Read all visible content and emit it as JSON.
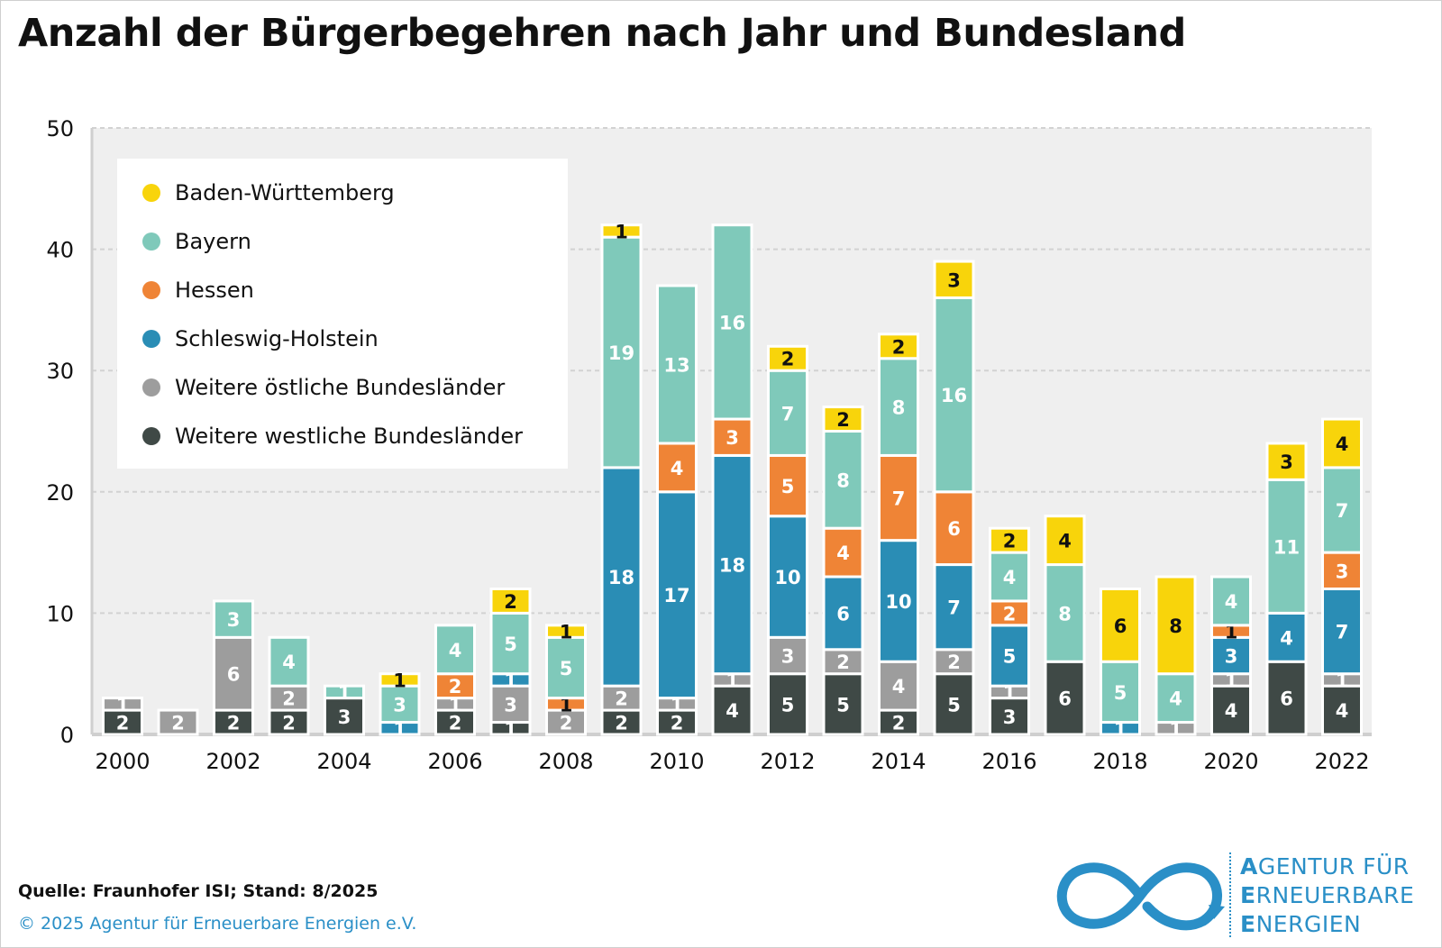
{
  "title": "Anzahl der Bürgerbegehren nach Jahr und Bundesland",
  "footer": {
    "source": "Quelle: Fraunhofer ISI; Stand: 8/2025",
    "copyright": "© 2025 Agentur für Erneuerbare Energien e.V."
  },
  "logo": {
    "lines": [
      {
        "first": "A",
        "rest": "GENTUR FÜR"
      },
      {
        "first": "E",
        "rest": "RNEUERBARE"
      },
      {
        "first": "E",
        "rest": "NERGIEN"
      }
    ]
  },
  "colors": {
    "bw": "#f8d40b",
    "by": "#7fc9ba",
    "he": "#ef8436",
    "sh": "#2a8db5",
    "ost": "#9d9d9d",
    "west": "#3f4946",
    "plot_bg": "#efefef",
    "logo": "#2a8fc7"
  },
  "chart_data": {
    "type": "bar",
    "stacked": true,
    "title": "Anzahl der Bürgerbegehren nach Jahr und Bundesland",
    "xlabel": "",
    "ylabel": "",
    "ylim": [
      0,
      50
    ],
    "yticks": [
      "0",
      "10",
      "20",
      "30",
      "40",
      "50"
    ],
    "xtick_labels": [
      "2000",
      "2002",
      "2004",
      "2006",
      "2008",
      "2010",
      "2012",
      "2014",
      "2016",
      "2018",
      "2020",
      "2022"
    ],
    "grid": true,
    "legend_position": "top-left",
    "categories": [
      "2000",
      "2001",
      "2002",
      "2003",
      "2004",
      "2005",
      "2006",
      "2007",
      "2008",
      "2009",
      "2010",
      "2011",
      "2012",
      "2013",
      "2014",
      "2015",
      "2016",
      "2017",
      "2018",
      "2019",
      "2020",
      "2021",
      "2022"
    ],
    "series": [
      {
        "name": "Weitere westliche Bundesländer",
        "key": "west",
        "values": [
          2,
          0,
          2,
          2,
          3,
          0,
          2,
          1,
          0,
          2,
          2,
          4,
          5,
          5,
          2,
          5,
          3,
          6,
          0,
          0,
          4,
          6,
          4
        ]
      },
      {
        "name": "Weitere östliche Bundesländer",
        "key": "ost",
        "values": [
          1,
          2,
          6,
          2,
          0,
          0,
          1,
          3,
          2,
          2,
          1,
          1,
          3,
          2,
          4,
          2,
          1,
          0,
          0,
          1,
          1,
          0,
          1
        ]
      },
      {
        "name": "Schleswig-Holstein",
        "key": "sh",
        "values": [
          0,
          0,
          0,
          0,
          0,
          1,
          0,
          1,
          0,
          18,
          17,
          18,
          10,
          6,
          10,
          7,
          5,
          0,
          1,
          0,
          3,
          4,
          7
        ]
      },
      {
        "name": "Hessen",
        "key": "he",
        "values": [
          0,
          0,
          0,
          0,
          0,
          0,
          2,
          0,
          1,
          0,
          4,
          3,
          5,
          4,
          7,
          6,
          2,
          0,
          0,
          0,
          1,
          0,
          3
        ]
      },
      {
        "name": "Bayern",
        "key": "by",
        "values": [
          0,
          0,
          3,
          4,
          1,
          3,
          4,
          5,
          5,
          19,
          13,
          16,
          7,
          8,
          8,
          16,
          4,
          8,
          5,
          4,
          4,
          11,
          7
        ]
      },
      {
        "name": "Baden-Württemberg",
        "key": "bw",
        "values": [
          0,
          0,
          0,
          0,
          0,
          1,
          0,
          2,
          1,
          1,
          0,
          0,
          2,
          2,
          2,
          3,
          2,
          4,
          6,
          8,
          0,
          3,
          4
        ]
      }
    ],
    "legend_order": [
      "bw",
      "by",
      "he",
      "sh",
      "ost",
      "west"
    ]
  }
}
